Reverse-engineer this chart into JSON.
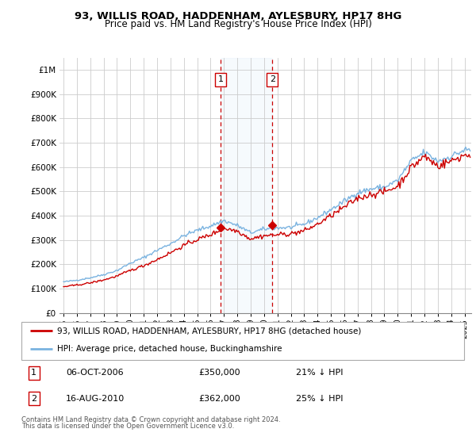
{
  "title": "93, WILLIS ROAD, HADDENHAM, AYLESBURY, HP17 8HG",
  "subtitle": "Price paid vs. HM Land Registry's House Price Index (HPI)",
  "legend_line1": "93, WILLIS ROAD, HADDENHAM, AYLESBURY, HP17 8HG (detached house)",
  "legend_line2": "HPI: Average price, detached house, Buckinghamshire",
  "footnote1": "Contains HM Land Registry data © Crown copyright and database right 2024.",
  "footnote2": "This data is licensed under the Open Government Licence v3.0.",
  "annotation1_label": "1",
  "annotation1_date": "06-OCT-2006",
  "annotation1_price": "£350,000",
  "annotation1_hpi": "21% ↓ HPI",
  "annotation1_year": 2006.75,
  "annotation1_value": 350000,
  "annotation2_label": "2",
  "annotation2_date": "16-AUG-2010",
  "annotation2_price": "£362,000",
  "annotation2_hpi": "25% ↓ HPI",
  "annotation2_year": 2010.625,
  "annotation2_value": 362000,
  "hpi_color": "#7ab3e0",
  "price_color": "#cc0000",
  "ylim_min": 0,
  "ylim_max": 1050000,
  "yticks": [
    0,
    100000,
    200000,
    300000,
    400000,
    500000,
    600000,
    700000,
    800000,
    900000,
    1000000
  ],
  "ytick_labels": [
    "£0",
    "£100K",
    "£200K",
    "£300K",
    "£400K",
    "£500K",
    "£600K",
    "£700K",
    "£800K",
    "£900K",
    "£1M"
  ],
  "xlim_min": 1994.7,
  "xlim_max": 2025.5,
  "xtick_years": [
    1995,
    1996,
    1997,
    1998,
    1999,
    2000,
    2001,
    2002,
    2003,
    2004,
    2005,
    2006,
    2007,
    2008,
    2009,
    2010,
    2011,
    2012,
    2013,
    2014,
    2015,
    2016,
    2017,
    2018,
    2019,
    2020,
    2021,
    2022,
    2023,
    2024,
    2025
  ]
}
